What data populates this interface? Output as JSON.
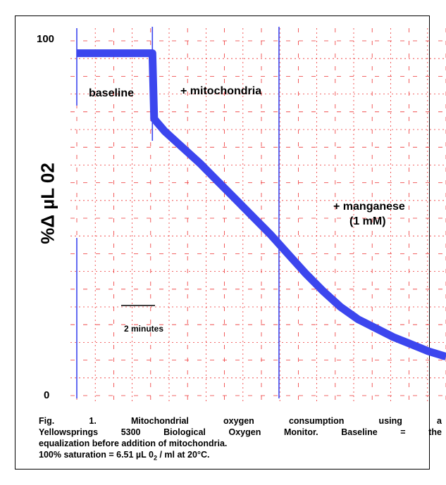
{
  "chart_data": {
    "type": "line",
    "title": "",
    "xlabel": "",
    "ylabel": "%Δ µL 0",
    "ylabel_subscript": "2",
    "y_ticks": [
      "100",
      "0"
    ],
    "ylim": [
      0,
      100
    ],
    "xlim": [
      0,
      21
    ],
    "grid": true,
    "series": [
      {
        "color": "#3c46ee",
        "points": [
          [
            0,
            96.5
          ],
          [
            4.3,
            96.5
          ],
          [
            4.4,
            78
          ],
          [
            5,
            74.5
          ],
          [
            6,
            70
          ],
          [
            7,
            65.5
          ],
          [
            8,
            60.5
          ],
          [
            9,
            55.5
          ],
          [
            10,
            50.5
          ],
          [
            11,
            45.5
          ],
          [
            12,
            40
          ],
          [
            13,
            34.5
          ],
          [
            14,
            29.5
          ],
          [
            15,
            25
          ],
          [
            16,
            21.5
          ],
          [
            17,
            19
          ],
          [
            18,
            16.5
          ],
          [
            19,
            14.5
          ],
          [
            20,
            12.5
          ],
          [
            21,
            11
          ]
        ]
      }
    ],
    "event_lines_x": [
      0,
      4.3,
      11.5
    ],
    "annotations": {
      "baseline": "baseline",
      "mitochondria": "+ mitochondria",
      "manganese": "+ manganese",
      "manganese_conc": "(1 mM)",
      "scale": "2 minutes"
    }
  },
  "caption": {
    "line1": "Fig. 1. Mitochondrial oxygen consumption using a",
    "line2": "Yellowsprings 5300 Biological Oxygen Monitor. Baseline = the",
    "line3": "equalization before addition of mitochondria.",
    "line4_pre": "100% saturation = 6.51 µL 0",
    "line4_sub": "2",
    "line4_post": " / ml at 20°C."
  },
  "colors": {
    "trace": "#3c46ee",
    "grid": "#ee3333",
    "event": "#3c46ee"
  }
}
